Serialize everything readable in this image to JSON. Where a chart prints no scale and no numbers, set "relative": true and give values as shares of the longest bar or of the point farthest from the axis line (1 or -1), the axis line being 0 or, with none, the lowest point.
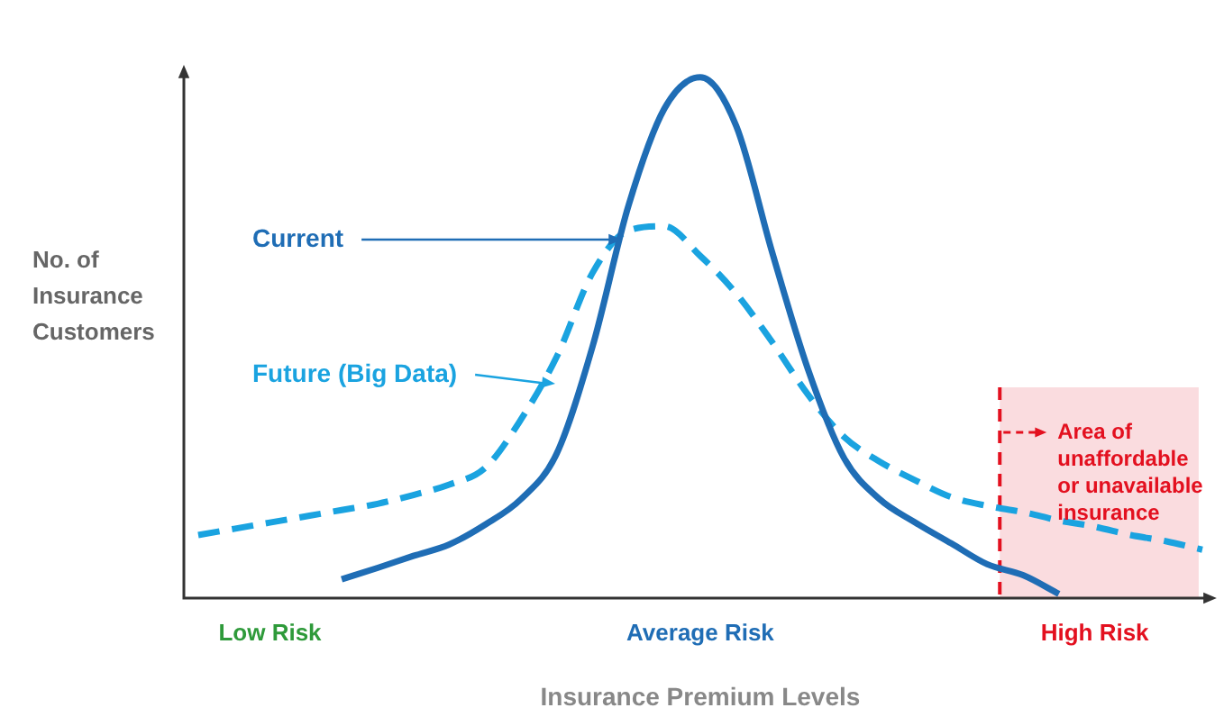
{
  "chart_data": {
    "type": "line",
    "relative": true,
    "xlabel": "Insurance Premium Levels",
    "ylabel": "No. of Insurance Customers",
    "categories": [
      null,
      null,
      "Low Risk",
      null,
      null,
      null,
      null,
      null,
      null,
      null,
      null,
      null,
      null,
      null,
      "Average Risk",
      null,
      null,
      null,
      null,
      null,
      null,
      null,
      null,
      null,
      null,
      "High Risk",
      null,
      null,
      null
    ],
    "series": [
      {
        "name": "Current",
        "color": "#1f6db5",
        "line_style": "solid",
        "values": [
          null,
          null,
          null,
          null,
          0.036,
          0.058,
          0.081,
          0.103,
          0.141,
          0.19,
          0.278,
          0.484,
          0.754,
          0.94,
          1,
          0.907,
          0.665,
          0.44,
          0.27,
          0.19,
          0.145,
          0.105,
          0.065,
          0.044,
          0.008,
          null,
          null,
          null,
          null
        ]
      },
      {
        "name": "Future (Big Data)",
        "color": "#1aa3e0",
        "line_style": "dashed",
        "values": [
          0.121,
          0.133,
          0.145,
          0.157,
          0.169,
          0.181,
          0.198,
          0.218,
          0.25,
          0.343,
          0.464,
          0.625,
          0.706,
          0.714,
          0.657,
          0.585,
          0.492,
          0.391,
          0.31,
          0.262,
          0.226,
          0.194,
          0.177,
          0.165,
          0.149,
          0.137,
          0.121,
          0.109,
          0.093
        ]
      }
    ],
    "annotations": [
      "Area of unaffordable or unavailable insurance"
    ],
    "marker": "none",
    "grid": false,
    "legend": "left"
  }
}
